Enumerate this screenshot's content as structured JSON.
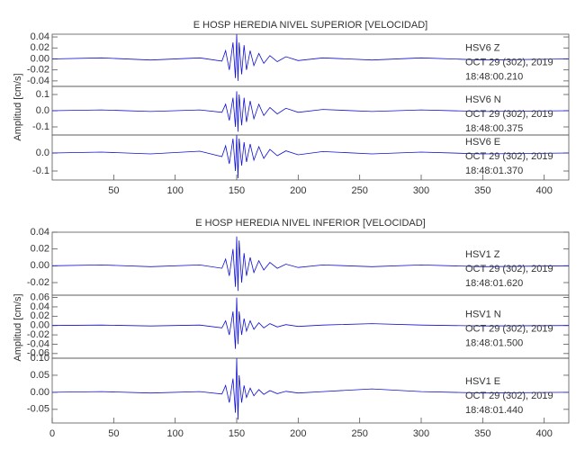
{
  "chart_data": [
    {
      "type": "line",
      "title": "E HOSP HEREDIA NIVEL SUPERIOR [VELOCIDAD]",
      "y_label": "Amplitud [cm/s]",
      "xlim": [
        0,
        420
      ],
      "xticks": [
        50,
        100,
        150,
        200,
        250,
        300,
        350,
        400
      ],
      "x": [
        0,
        40,
        80,
        120,
        138,
        141,
        144,
        147,
        149,
        150,
        151,
        152,
        154,
        156,
        158,
        161,
        164,
        168,
        172,
        177,
        183,
        190,
        200,
        220,
        260,
        300,
        350,
        420
      ],
      "series": [
        {
          "name": "HSV6   Z",
          "date": "OCT 29 (302), 2019",
          "time": "18:48:00.210",
          "color": "#1010d0",
          "ylim": [
            -0.05,
            0.045
          ],
          "yticks": [
            0.04,
            0.02,
            {
              "value": 0,
              "label": "0.00"
            },
            -0.02,
            -0.04
          ],
          "values": [
            0,
            0.002,
            -0.002,
            0.002,
            -0.004,
            0.015,
            -0.02,
            0.03,
            -0.035,
            0.045,
            -0.04,
            0.03,
            -0.028,
            0.025,
            -0.02,
            0.015,
            -0.012,
            0.01,
            -0.008,
            0.006,
            -0.005,
            0.004,
            -0.003,
            0.002,
            -0.002,
            0.002,
            -0.002,
            0
          ]
        },
        {
          "name": "HSV6   N",
          "date": "OCT 29 (302), 2019",
          "time": "18:48:00.375",
          "color": "#1010d0",
          "ylim": [
            -0.15,
            0.15
          ],
          "yticks": [
            0.1,
            {
              "value": 0,
              "label": "0.0"
            },
            -0.1
          ],
          "values": [
            0,
            0.005,
            -0.005,
            0.005,
            -0.01,
            0.04,
            -0.06,
            0.08,
            -0.1,
            0.12,
            -0.13,
            0.1,
            -0.09,
            0.08,
            -0.07,
            0.06,
            -0.05,
            0.04,
            -0.03,
            0.02,
            -0.02,
            0.015,
            -0.01,
            0.008,
            -0.005,
            0.005,
            -0.005,
            0
          ]
        },
        {
          "name": "HSV6   E",
          "date": "OCT 29 (302), 2019",
          "time": "18:48:01.370",
          "color": "#1010d0",
          "ylim": [
            -0.15,
            0.1
          ],
          "yticks": [
            {
              "value": 0,
              "label": "0.0"
            },
            -0.1
          ],
          "values": [
            0,
            0.005,
            -0.005,
            0.01,
            -0.02,
            0.04,
            -0.06,
            0.08,
            -0.1,
            0.1,
            -0.14,
            0.08,
            -0.07,
            0.06,
            -0.05,
            0.05,
            -0.04,
            0.035,
            -0.03,
            0.02,
            -0.015,
            0.012,
            -0.01,
            0.008,
            -0.005,
            0.005,
            -0.005,
            0
          ]
        }
      ]
    },
    {
      "type": "line",
      "title": "E HOSP HEREDIA NIVEL INFERIOR [VELOCIDAD]",
      "y_label": "Amplitud [cm/s]",
      "xlim": [
        0,
        420
      ],
      "xticks": [
        0,
        50,
        100,
        150,
        200,
        250,
        300,
        350,
        400
      ],
      "x": [
        0,
        40,
        80,
        120,
        138,
        141,
        144,
        147,
        149,
        150,
        151,
        152,
        154,
        156,
        158,
        161,
        164,
        168,
        172,
        177,
        183,
        190,
        200,
        220,
        260,
        300,
        350,
        420
      ],
      "series": [
        {
          "name": "HSV1   Z",
          "date": "OCT 29 (302), 2019",
          "time": "18:48:01.620",
          "color": "#1010d0",
          "ylim": [
            -0.035,
            0.04
          ],
          "yticks": [
            0.04,
            0.02,
            {
              "value": 0,
              "label": "0.00"
            },
            -0.02
          ],
          "values": [
            0,
            0.001,
            -0.001,
            0.001,
            -0.003,
            0.008,
            -0.012,
            0.02,
            -0.025,
            0.035,
            -0.03,
            0.03,
            -0.02,
            0.015,
            -0.012,
            0.01,
            -0.008,
            0.006,
            -0.005,
            0.004,
            -0.003,
            0.002,
            -0.002,
            0.001,
            -0.001,
            0.001,
            -0.001,
            0
          ]
        },
        {
          "name": "HSV1   N",
          "date": "OCT 29 (302), 2019",
          "time": "18:48:01.500",
          "color": "#1010d0",
          "ylim": [
            -0.07,
            0.065
          ],
          "yticks": [
            0.06,
            0.04,
            0.02,
            {
              "value": 0,
              "label": "0.00"
            },
            -0.02,
            -0.04,
            -0.06
          ],
          "values": [
            0,
            0.001,
            -0.001,
            0.001,
            -0.005,
            0.01,
            -0.02,
            0.03,
            -0.05,
            0.06,
            -0.04,
            0.03,
            -0.02,
            0.015,
            -0.012,
            0.01,
            -0.008,
            0.006,
            -0.005,
            0.004,
            -0.003,
            0.002,
            -0.002,
            0.001,
            0.004,
            0.001,
            -0.001,
            0
          ]
        },
        {
          "name": "HSV1   E",
          "date": "OCT 29 (302), 2019",
          "time": "18:48:01.440",
          "color": "#1010d0",
          "ylim": [
            -0.09,
            0.1
          ],
          "yticks": [
            {
              "value": 0.1,
              "label": "0.10"
            },
            0.05,
            {
              "value": 0,
              "label": "0.00"
            },
            -0.05
          ],
          "values": [
            0,
            0.002,
            -0.002,
            0.002,
            -0.005,
            0.02,
            -0.03,
            0.04,
            -0.06,
            0.1,
            -0.08,
            0.05,
            -0.03,
            0.02,
            -0.015,
            0.012,
            -0.01,
            0.008,
            -0.006,
            0.005,
            -0.004,
            0.003,
            -0.002,
            0.002,
            0.01,
            0.002,
            -0.002,
            0
          ]
        }
      ]
    }
  ]
}
